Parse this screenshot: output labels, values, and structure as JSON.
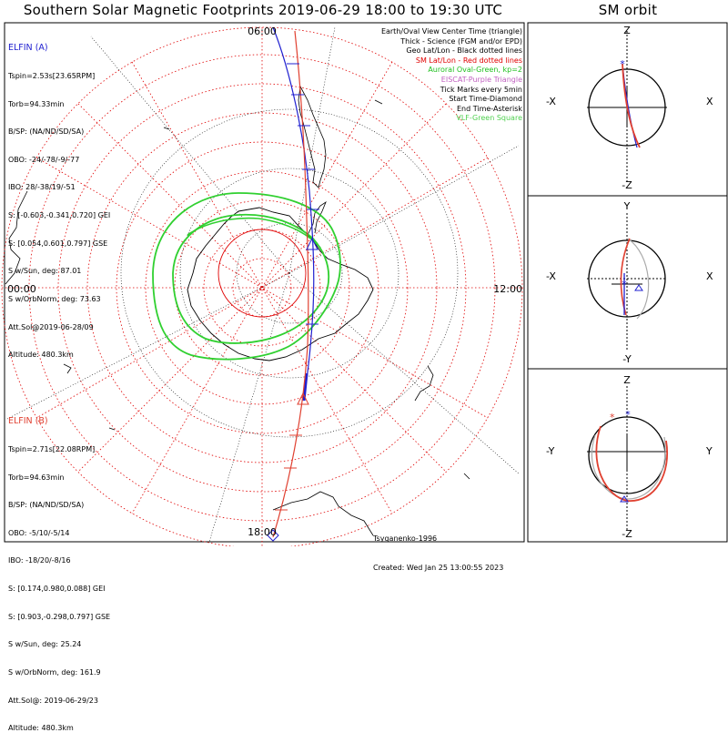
{
  "title": "Southern Solar Magnetic Footprints 2019-06-29 18:00 to 19:30 UTC",
  "sm_title": "SM orbit",
  "map": {
    "time_labels": {
      "top": "06:00",
      "bottom": "18:00",
      "left": "00:00",
      "right": "12:00"
    }
  },
  "elfin_a": {
    "header": "ELFIN (A)",
    "lines": [
      "Tspin=2.53s[23.65RPM]",
      "Torb=94.33min",
      "B/SP: (NA/ND/SD/SA)",
      "OBO: -24/-78/-9/-77",
      "IBO: 28/-38/19/-51",
      "S: [-0.603,-0.341,0.720] GEI",
      "S: [0.054,0.601,0.797] GSE",
      "S w/Sun, deg: 87.01",
      "S w/OrbNorm, deg: 73.63",
      "Att.Sol@2019-06-28/09",
      "Altitude: 480.3km"
    ]
  },
  "elfin_b": {
    "header": "ELFIN (B)",
    "lines": [
      "Tspin=2.71s[22.08RPM]",
      "Torb=94.63min",
      "B/SP: (NA/ND/SD/SA)",
      "OBO: -5/10/-5/14",
      "IBO: -18/20/-8/16",
      "S: [0.174,0.980,0.088] GEI",
      "S: [0.903,-0.298,0.797] GSE",
      "S w/Sun, deg: 25.24",
      "S w/OrbNorm, deg: 161.9",
      "Att.Sol@: 2019-06-29/23",
      "Altitude: 480.3km"
    ]
  },
  "legend": [
    {
      "text": "Earth/Oval View Center Time (triangle)",
      "color": "#000000"
    },
    {
      "text": "Thick - Science (FGM and/or EPD)",
      "color": "#000000"
    },
    {
      "text": "Geo Lat/Lon - Black dotted lines",
      "color": "#000000"
    },
    {
      "text": "SM Lat/Lon - Red dotted lines",
      "color": "#e00000"
    },
    {
      "text": "Auroral Oval-Green, kp=2",
      "color": "#20c020"
    },
    {
      "text": "EISCAT-Purple Triangle",
      "color": "#c060c0"
    },
    {
      "text": "Tick Marks every 5min",
      "color": "#000000"
    },
    {
      "text": "Start Time-Diamond",
      "color": "#000000"
    },
    {
      "text": "End Time-Asterisk",
      "color": "#000000"
    },
    {
      "text": "VLF-Green Square",
      "color": "#50d050"
    }
  ],
  "footer": {
    "model": "Tsyganenko-1996",
    "created": "Created: Wed Jan 25 13:00:55 2023"
  },
  "sm_panels": [
    {
      "top": "Z",
      "bottom": "-Z",
      "left": "-X",
      "right": "X"
    },
    {
      "top": "Y",
      "bottom": "-Y",
      "left": "-X",
      "right": "X"
    },
    {
      "top": "Z",
      "bottom": "-Z",
      "left": "-Y",
      "right": "Y"
    }
  ],
  "colors": {
    "elfin_a": "#2020d0",
    "elfin_b": "#e04030",
    "oval": "#30d030",
    "sm_grid": "#e00000"
  }
}
